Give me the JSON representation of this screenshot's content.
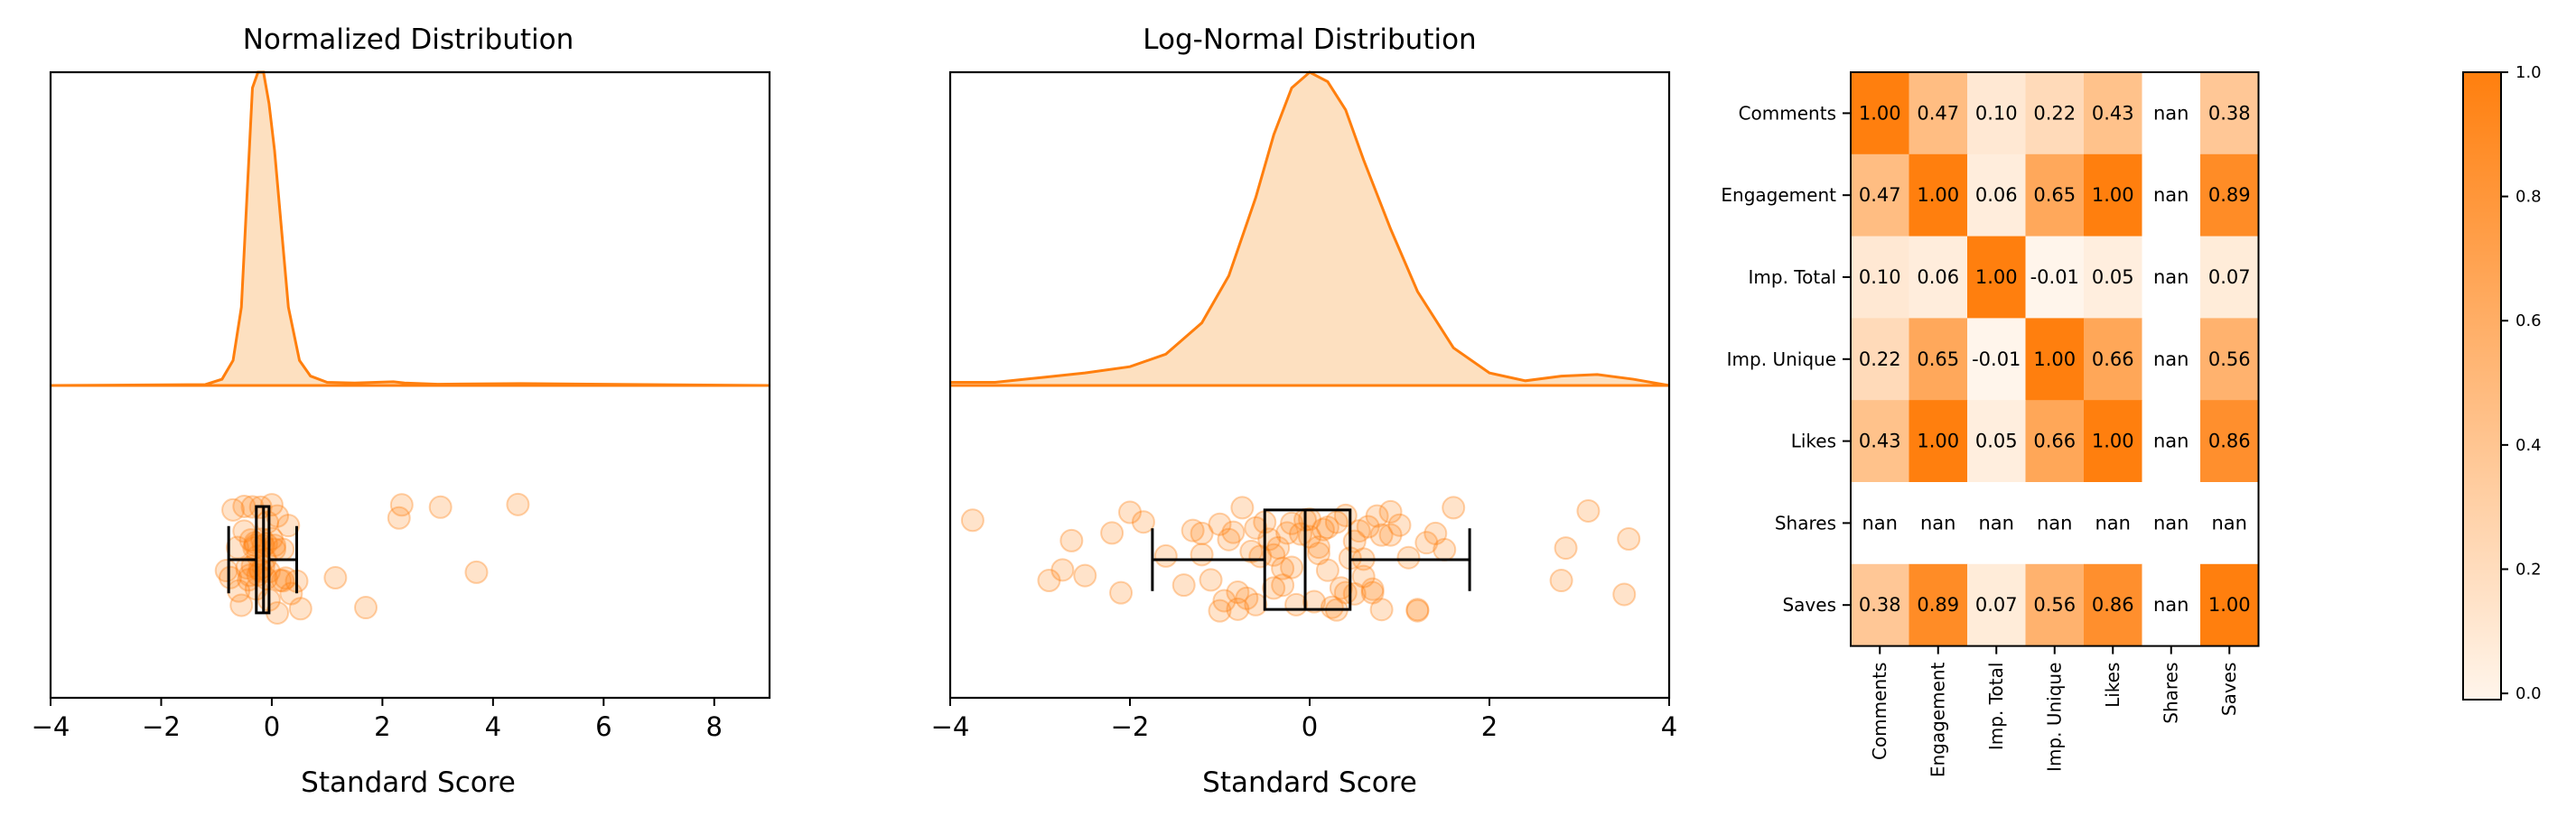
{
  "chart_data": [
    {
      "type": "scatter",
      "title": "Normalized Distribution",
      "xlabel": "Standard Score",
      "ylabel": "",
      "xlim": [
        -4,
        9
      ],
      "x_ticks": [
        "−4",
        "−2",
        "0",
        "2",
        "4",
        "6",
        "8"
      ],
      "x_tick_values": [
        -4,
        -2,
        0,
        2,
        4,
        6,
        8
      ],
      "kde": {
        "x": [
          -4,
          -1.2,
          -0.9,
          -0.7,
          -0.55,
          -0.45,
          -0.35,
          -0.25,
          -0.15,
          -0.05,
          0.05,
          0.15,
          0.3,
          0.5,
          0.7,
          1.0,
          1.5,
          2.2,
          2.4,
          3.0,
          4.5,
          9
        ],
        "density": [
          0,
          0.003,
          0.02,
          0.08,
          0.25,
          0.6,
          0.95,
          1.0,
          1.0,
          0.9,
          0.75,
          0.55,
          0.25,
          0.08,
          0.03,
          0.01,
          0.008,
          0.012,
          0.008,
          0.004,
          0.006,
          0
        ]
      },
      "box": {
        "whisker_low": -0.78,
        "q1": -0.28,
        "median": -0.15,
        "q3": -0.05,
        "whisker_high": 0.45
      },
      "outliers": [
        2.3,
        1.7,
        3.05,
        4.45,
        3.7,
        2.35,
        1.15
      ],
      "points_x": [
        -0.82,
        -0.75,
        -0.7,
        -0.62,
        -0.55,
        -0.5,
        -0.45,
        -0.42,
        -0.38,
        -0.35,
        -0.32,
        -0.3,
        -0.28,
        -0.25,
        -0.22,
        -0.2,
        -0.18,
        -0.15,
        -0.12,
        -0.1,
        -0.08,
        -0.05,
        0.0,
        0.05,
        0.1,
        0.15,
        0.2,
        0.25,
        0.35,
        0.45,
        0.52,
        -0.6,
        -0.4,
        -0.3,
        -0.2,
        -0.1,
        0.0,
        0.1,
        0.3,
        -0.5,
        -0.35,
        -0.25,
        -0.15,
        -0.05,
        0.05,
        0.2
      ]
    },
    {
      "type": "scatter",
      "title": "Log-Normal Distribution",
      "xlabel": "Standard Score",
      "ylabel": "",
      "xlim": [
        -4,
        4
      ],
      "x_ticks": [
        "−4",
        "−2",
        "0",
        "2",
        "4"
      ],
      "x_tick_values": [
        -4,
        -2,
        0,
        2,
        4
      ],
      "kde": {
        "x": [
          -4,
          -3.5,
          -3.0,
          -2.5,
          -2.0,
          -1.6,
          -1.2,
          -0.9,
          -0.6,
          -0.4,
          -0.2,
          0.0,
          0.2,
          0.4,
          0.6,
          0.9,
          1.2,
          1.6,
          2.0,
          2.4,
          2.8,
          3.2,
          3.6,
          4.0
        ],
        "density": [
          0.01,
          0.01,
          0.025,
          0.04,
          0.06,
          0.1,
          0.2,
          0.35,
          0.6,
          0.8,
          0.95,
          1.0,
          0.97,
          0.88,
          0.72,
          0.5,
          0.3,
          0.12,
          0.04,
          0.015,
          0.03,
          0.035,
          0.02,
          0.0
        ]
      },
      "box": {
        "whisker_low": -1.75,
        "q1": -0.5,
        "median": -0.05,
        "q3": 0.45,
        "whisker_high": 1.78
      },
      "outliers": [
        -3.75,
        -2.9,
        -2.75,
        -2.65,
        -2.5,
        -2.2,
        -2.1,
        -2.0,
        -1.85,
        3.1,
        3.55,
        2.8,
        2.85,
        3.5
      ],
      "points_x": [
        -1.6,
        -1.4,
        -1.3,
        -1.2,
        -1.1,
        -1.0,
        -0.95,
        -0.9,
        -0.85,
        -0.8,
        -0.75,
        -0.7,
        -0.65,
        -0.6,
        -0.55,
        -0.5,
        -0.45,
        -0.4,
        -0.35,
        -0.3,
        -0.25,
        -0.2,
        -0.15,
        -0.1,
        -0.05,
        0.0,
        0.05,
        0.1,
        0.15,
        0.2,
        0.25,
        0.3,
        0.35,
        0.4,
        0.45,
        0.5,
        0.55,
        0.6,
        0.65,
        0.7,
        0.75,
        0.8,
        0.9,
        1.0,
        1.1,
        1.2,
        1.3,
        1.4,
        1.5,
        1.6,
        -1.0,
        -0.6,
        -0.3,
        0.0,
        0.3,
        0.6,
        0.9,
        -0.8,
        -0.2,
        0.2,
        0.5,
        0.8,
        1.2,
        -1.2,
        0.1,
        0.4,
        -0.4,
        0.7
      ]
    },
    {
      "type": "heatmap",
      "title": "",
      "xlabel": "",
      "ylabel": "",
      "rows": [
        "Comments",
        "Engagement",
        "Imp. Total",
        "Imp. Unique",
        "Likes",
        "Shares",
        "Saves"
      ],
      "cols": [
        "Comments",
        "Engagement",
        "Imp. Total",
        "Imp. Unique",
        "Likes",
        "Shares",
        "Saves"
      ],
      "values": [
        [
          1.0,
          0.47,
          0.1,
          0.22,
          0.43,
          null,
          0.38
        ],
        [
          0.47,
          1.0,
          0.06,
          0.65,
          1.0,
          null,
          0.89
        ],
        [
          0.1,
          0.06,
          1.0,
          -0.01,
          0.05,
          null,
          0.07
        ],
        [
          0.22,
          0.65,
          -0.01,
          1.0,
          0.66,
          null,
          0.56
        ],
        [
          0.43,
          1.0,
          0.05,
          0.66,
          1.0,
          null,
          0.86
        ],
        [
          null,
          null,
          null,
          null,
          null,
          null,
          null
        ],
        [
          0.38,
          0.89,
          0.07,
          0.56,
          0.86,
          null,
          1.0
        ]
      ],
      "labels": [
        [
          "1.00",
          "0.47",
          "0.10",
          "0.22",
          "0.43",
          "nan",
          "0.38"
        ],
        [
          "0.47",
          "1.00",
          "0.06",
          "0.65",
          "1.00",
          "nan",
          "0.89"
        ],
        [
          "0.10",
          "0.06",
          "1.00",
          "-0.01",
          "0.05",
          "nan",
          "0.07"
        ],
        [
          "0.22",
          "0.65",
          "-0.01",
          "1.00",
          "0.66",
          "nan",
          "0.56"
        ],
        [
          "0.43",
          "1.00",
          "0.05",
          "0.66",
          "1.00",
          "nan",
          "0.86"
        ],
        [
          "nan",
          "nan",
          "nan",
          "nan",
          "nan",
          "nan",
          "nan"
        ],
        [
          "0.38",
          "0.89",
          "0.07",
          "0.56",
          "0.86",
          "nan",
          "1.00"
        ]
      ],
      "colorbar": {
        "range": [
          -0.01,
          1.0
        ],
        "ticks": [
          "0.0",
          "0.2",
          "0.4",
          "0.6",
          "0.8",
          "1.0"
        ],
        "tick_values": [
          0.0,
          0.2,
          0.4,
          0.6,
          0.8,
          1.0
        ],
        "color_low": "#fff5eb",
        "color_high": "#ff7f0e"
      }
    }
  ]
}
